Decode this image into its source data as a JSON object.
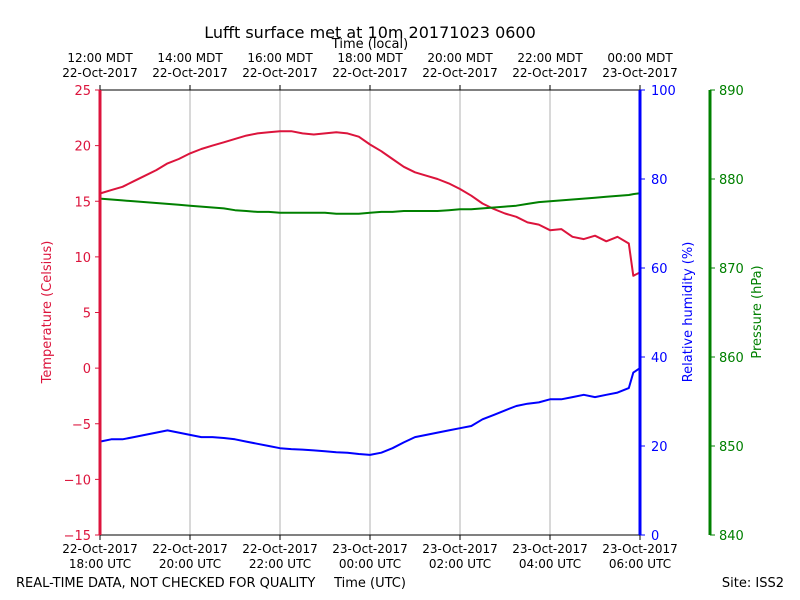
{
  "colors": {
    "temperature": "#dc143c",
    "humidity": "#0000ff",
    "pressure": "#008000",
    "grid": "#b0b0b0",
    "axis": "#000000"
  },
  "footer": {
    "disclaimer": "REAL-TIME DATA, NOT CHECKED FOR QUALITY",
    "site": "Site: ISS2"
  },
  "chart_data": {
    "type": "line",
    "title": "Lufft surface met at 10m 20171023 0600",
    "xlabel": "Time (UTC)",
    "xlabel_top": "Time (local)",
    "x_unit": "hours since 22-Oct-2017 18:00 UTC",
    "xlim": [
      0,
      12
    ],
    "grid": "vertical",
    "bottom_ticks": [
      {
        "x": 0,
        "line1": "22-Oct-2017",
        "line2": "18:00 UTC"
      },
      {
        "x": 2,
        "line1": "22-Oct-2017",
        "line2": "20:00 UTC"
      },
      {
        "x": 4,
        "line1": "22-Oct-2017",
        "line2": "22:00 UTC"
      },
      {
        "x": 6,
        "line1": "23-Oct-2017",
        "line2": "00:00 UTC"
      },
      {
        "x": 8,
        "line1": "23-Oct-2017",
        "line2": "02:00 UTC"
      },
      {
        "x": 10,
        "line1": "23-Oct-2017",
        "line2": "04:00 UTC"
      },
      {
        "x": 12,
        "line1": "23-Oct-2017",
        "line2": "06:00 UTC"
      }
    ],
    "top_ticks": [
      {
        "x": 0,
        "line1": "12:00 MDT",
        "line2": "22-Oct-2017"
      },
      {
        "x": 2,
        "line1": "14:00 MDT",
        "line2": "22-Oct-2017"
      },
      {
        "x": 4,
        "line1": "16:00 MDT",
        "line2": "22-Oct-2017"
      },
      {
        "x": 6,
        "line1": "18:00 MDT",
        "line2": "22-Oct-2017"
      },
      {
        "x": 8,
        "line1": "20:00 MDT",
        "line2": "22-Oct-2017"
      },
      {
        "x": 10,
        "line1": "22:00 MDT",
        "line2": "22-Oct-2017"
      },
      {
        "x": 12,
        "line1": "00:00 MDT",
        "line2": "23-Oct-2017"
      }
    ],
    "axes": {
      "temperature": {
        "label": "Temperature (Celsius)",
        "ylim": [
          -15,
          25
        ],
        "ticks": [
          -15,
          -10,
          -5,
          0,
          5,
          10,
          15,
          20,
          25
        ]
      },
      "humidity": {
        "label": "Relative humidity (%)",
        "ylim": [
          0,
          100
        ],
        "ticks": [
          0,
          20,
          40,
          60,
          80,
          100
        ]
      },
      "pressure": {
        "label": "Pressure (hPa)",
        "ylim": [
          840,
          890
        ],
        "ticks": [
          840,
          850,
          860,
          870,
          880,
          890
        ]
      }
    },
    "series": [
      {
        "name": "Temperature",
        "axis": "temperature",
        "x": [
          0,
          0.25,
          0.5,
          0.75,
          1.0,
          1.25,
          1.5,
          1.75,
          2.0,
          2.25,
          2.5,
          2.75,
          3.0,
          3.25,
          3.5,
          3.75,
          4.0,
          4.25,
          4.5,
          4.75,
          5.0,
          5.25,
          5.5,
          5.75,
          6.0,
          6.25,
          6.5,
          6.75,
          7.0,
          7.25,
          7.5,
          7.75,
          8.0,
          8.25,
          8.5,
          8.75,
          9.0,
          9.25,
          9.5,
          9.75,
          10.0,
          10.25,
          10.5,
          10.75,
          11.0,
          11.25,
          11.5,
          11.75,
          11.85,
          12.0
        ],
        "values": [
          15.7,
          16.0,
          16.3,
          16.8,
          17.3,
          17.8,
          18.4,
          18.8,
          19.3,
          19.7,
          20.0,
          20.3,
          20.6,
          20.9,
          21.1,
          21.2,
          21.3,
          21.3,
          21.1,
          21.0,
          21.1,
          21.2,
          21.1,
          20.8,
          20.1,
          19.5,
          18.8,
          18.1,
          17.6,
          17.3,
          17.0,
          16.6,
          16.1,
          15.5,
          14.8,
          14.3,
          13.9,
          13.6,
          13.1,
          12.9,
          12.4,
          12.5,
          11.8,
          11.6,
          11.9,
          11.4,
          11.8,
          11.2,
          8.3,
          8.6
        ]
      },
      {
        "name": "Relative humidity",
        "axis": "humidity",
        "x": [
          0,
          0.25,
          0.5,
          0.75,
          1.0,
          1.25,
          1.5,
          1.75,
          2.0,
          2.25,
          2.5,
          2.75,
          3.0,
          3.25,
          3.5,
          3.75,
          4.0,
          4.25,
          4.5,
          4.75,
          5.0,
          5.25,
          5.5,
          5.75,
          6.0,
          6.25,
          6.5,
          6.75,
          7.0,
          7.25,
          7.5,
          7.75,
          8.0,
          8.25,
          8.5,
          8.75,
          9.0,
          9.25,
          9.5,
          9.75,
          10.0,
          10.25,
          10.5,
          10.75,
          11.0,
          11.25,
          11.5,
          11.75,
          11.85,
          12.0
        ],
        "values": [
          21.0,
          21.5,
          21.5,
          22.0,
          22.5,
          23.0,
          23.5,
          23.0,
          22.5,
          22.0,
          22.0,
          21.8,
          21.5,
          21.0,
          20.5,
          20.0,
          19.5,
          19.3,
          19.2,
          19.0,
          18.8,
          18.6,
          18.5,
          18.2,
          18.0,
          18.5,
          19.5,
          20.8,
          22.0,
          22.5,
          23.0,
          23.5,
          24.0,
          24.5,
          26.0,
          27.0,
          28.0,
          29.0,
          29.5,
          29.8,
          30.5,
          30.5,
          31.0,
          31.5,
          31.0,
          31.5,
          32.0,
          33.0,
          36.5,
          37.5
        ]
      },
      {
        "name": "Pressure",
        "axis": "pressure",
        "x": [
          0,
          0.25,
          0.5,
          0.75,
          1.0,
          1.25,
          1.5,
          1.75,
          2.0,
          2.25,
          2.5,
          2.75,
          3.0,
          3.25,
          3.5,
          3.75,
          4.0,
          4.25,
          4.5,
          4.75,
          5.0,
          5.25,
          5.5,
          5.75,
          6.0,
          6.25,
          6.5,
          6.75,
          7.0,
          7.25,
          7.5,
          7.75,
          8.0,
          8.25,
          8.5,
          8.75,
          9.0,
          9.25,
          9.5,
          9.75,
          10.0,
          10.25,
          10.5,
          10.75,
          11.0,
          11.25,
          11.5,
          11.75,
          11.85,
          12.0
        ],
        "values": [
          877.8,
          877.7,
          877.6,
          877.5,
          877.4,
          877.3,
          877.2,
          877.1,
          877.0,
          876.9,
          876.8,
          876.7,
          876.5,
          876.4,
          876.3,
          876.3,
          876.2,
          876.2,
          876.2,
          876.2,
          876.2,
          876.1,
          876.1,
          876.1,
          876.2,
          876.3,
          876.3,
          876.4,
          876.4,
          876.4,
          876.4,
          876.5,
          876.6,
          876.6,
          876.7,
          876.8,
          876.9,
          877.0,
          877.2,
          877.4,
          877.5,
          877.6,
          877.7,
          877.8,
          877.9,
          878.0,
          878.1,
          878.2,
          878.3,
          878.4
        ]
      }
    ]
  }
}
